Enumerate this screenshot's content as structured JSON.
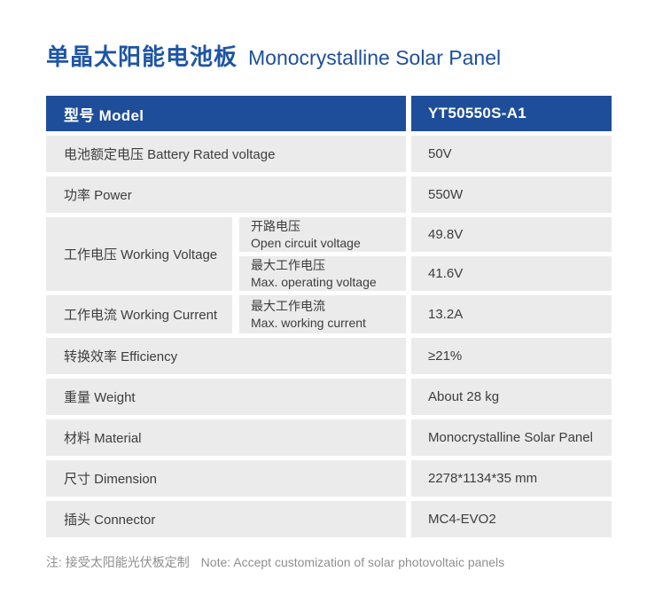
{
  "page": {
    "title_cn": "单晶太阳能电池板",
    "title_en": "Monocrystalline Solar Panel",
    "note_cn": "注: 接受太阳能光伏板定制",
    "note_en": "Note: Accept customization of solar photovoltaic panels"
  },
  "colors": {
    "header_blue": "#1e4e99",
    "title_blue": "#1e55a6",
    "cell_gray": "#ebebeb",
    "text_dark": "#3d3d3d",
    "note_gray": "#8f8f8f",
    "header_text": "#ffffff"
  },
  "table": {
    "header": {
      "label": "型号 Model",
      "value": "YT50550S-A1"
    },
    "rows": [
      {
        "type": "simple",
        "label": "电池额定电压 Battery Rated voltage",
        "value": "50V"
      },
      {
        "type": "simple",
        "label": "功率 Power",
        "value": "550W"
      },
      {
        "type": "group",
        "label": "工作电压 Working Voltage",
        "subrows": [
          {
            "sub_cn": "开路电压",
            "sub_en": "Open circuit voltage",
            "value": "49.8V"
          },
          {
            "sub_cn": "最大工作电压",
            "sub_en": "Max. operating voltage",
            "value": "41.6V"
          }
        ]
      },
      {
        "type": "split",
        "label": "工作电流 Working Current",
        "sub_cn": "最大工作电流",
        "sub_en": "Max. working current",
        "value": "13.2A"
      },
      {
        "type": "simple",
        "label": "转换效率 Efficiency",
        "value": "≥21%"
      },
      {
        "type": "simple",
        "label": "重量 Weight",
        "value": "About 28 kg"
      },
      {
        "type": "simple",
        "label": "材料 Material",
        "value": "Monocrystalline Solar Panel"
      },
      {
        "type": "simple",
        "label": "尺寸 Dimension",
        "value": "2278*1134*35 mm"
      },
      {
        "type": "simple",
        "label": "插头 Connector",
        "value": "MC4-EVO2"
      }
    ]
  }
}
